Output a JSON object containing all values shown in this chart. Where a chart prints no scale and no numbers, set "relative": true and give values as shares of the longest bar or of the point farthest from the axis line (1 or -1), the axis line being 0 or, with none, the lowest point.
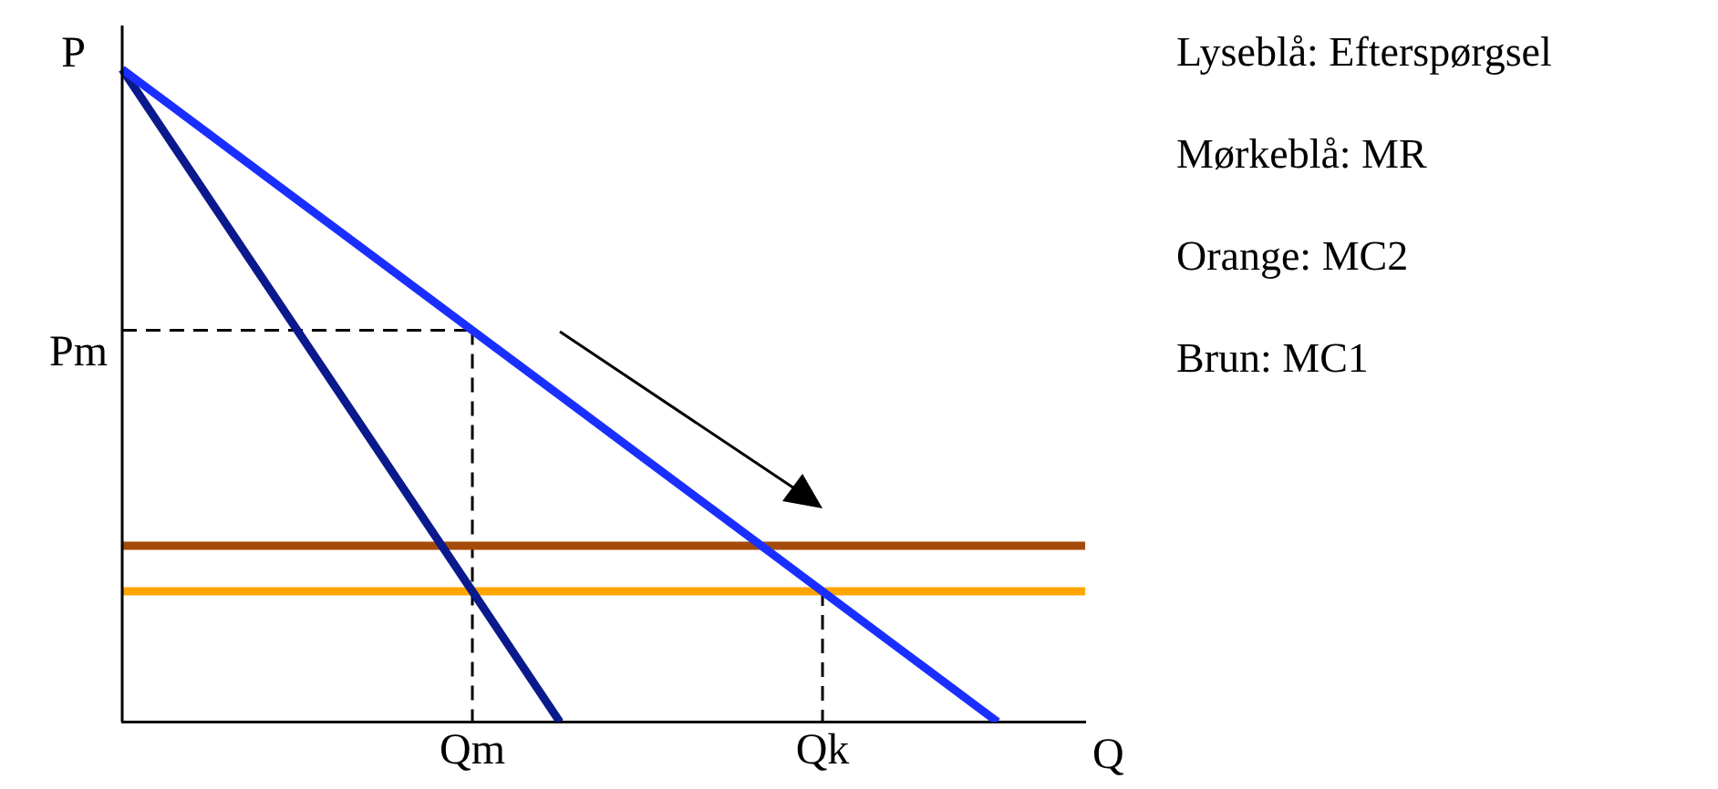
{
  "chart_data": {
    "type": "line",
    "relative": true,
    "xlabel": "Q",
    "ylabel": "P",
    "categories": [
      null,
      null,
      null,
      null,
      "Qm",
      null,
      null,
      null,
      "Qk",
      null,
      null,
      null
    ],
    "marker": "none",
    "legend": false,
    "grid": false,
    "series": [
      {
        "color": "#1a2fff",
        "values": [
          1,
          0.9,
          0.8,
          0.7,
          0.6,
          0.5,
          0.4,
          0.3,
          0.2,
          0.1,
          0,
          null
        ]
      },
      {
        "color": "#0a1a8c",
        "values": [
          1,
          0.8,
          0.6,
          0.4,
          0.2,
          0,
          null,
          null,
          null,
          null,
          null,
          null
        ]
      },
      {
        "color": "#a64a0a",
        "values": [
          0.27,
          0.27,
          0.27,
          0.27,
          0.27,
          0.27,
          0.27,
          0.27,
          0.27,
          0.27,
          0.27,
          0.27
        ]
      },
      {
        "color": "#ffa500",
        "values": [
          0.2,
          0.2,
          0.2,
          0.2,
          0.2,
          0.2,
          0.2,
          0.2,
          0.2,
          0.2,
          0.2,
          0.2
        ]
      },
      {
        "color": "#000000",
        "line_style": "dashed",
        "values": [
          0.6,
          0.6,
          0.6,
          0.6,
          0.6,
          null,
          null,
          null,
          null,
          null,
          null,
          null
        ]
      },
      {
        "color": "#000000",
        "line_style": "dashed",
        "x": [
          "Qm",
          "Qm"
        ],
        "values": [
          0.6,
          0
        ]
      },
      {
        "color": "#000000",
        "line_style": "dashed",
        "x": [
          "Qk",
          "Qk"
        ],
        "values": [
          0.2,
          0
        ]
      }
    ],
    "annotations": [
      "Pm",
      "Lyseblå: Efterspørgsel",
      "Mørkeblå: MR",
      "Orange: MC2",
      "Brun: MC1"
    ]
  }
}
